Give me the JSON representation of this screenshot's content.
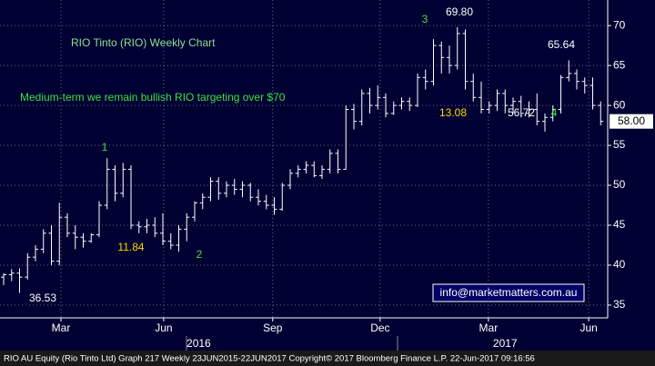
{
  "chart_data": {
    "type": "ohlc",
    "color": "#ffffff",
    "open": [
      38.5,
      38.8,
      39,
      38.5,
      41,
      42,
      44,
      40.5,
      46,
      44,
      43.5,
      43,
      43.8,
      47.5,
      52,
      49,
      52,
      45,
      44.8,
      45,
      44,
      43,
      42.5,
      44.5,
      46,
      47.8,
      48.5,
      50.5,
      49,
      50,
      49.5,
      50,
      48.5,
      48,
      47.5,
      47,
      50,
      51.5,
      52,
      52.5,
      51.2,
      52,
      54,
      52,
      59.5,
      58,
      61.5,
      60,
      61,
      59,
      60,
      60.5,
      60,
      63.5,
      63,
      67.5,
      66,
      65,
      69,
      63,
      61,
      59.5,
      60,
      61.5,
      60,
      60.5,
      59,
      59.5,
      58,
      58.5,
      59.5,
      63.5,
      64,
      63,
      62.5,
      60
    ],
    "high": [
      39,
      39.5,
      39.6,
      41.5,
      42.5,
      44.5,
      45,
      47.8,
      46.5,
      45,
      44,
      44,
      48,
      53.4,
      52.5,
      52.8,
      52.5,
      45.5,
      45.8,
      46,
      46.5,
      44,
      45,
      46.5,
      48,
      49,
      51,
      51,
      50.5,
      50.8,
      50.5,
      50.3,
      49.5,
      48.8,
      48.5,
      50.3,
      52,
      52.5,
      53,
      53,
      52.5,
      54.5,
      54.5,
      60,
      60.2,
      62,
      62.2,
      62.5,
      61.5,
      60.5,
      61,
      61,
      64,
      64.5,
      68.3,
      68,
      67.5,
      69.8,
      69.5,
      64,
      63,
      60.5,
      62,
      62,
      61,
      61.2,
      60.5,
      61.5,
      59,
      60,
      63.8,
      65.64,
      64.5,
      63.5,
      63.5,
      60.5
    ],
    "low": [
      37.5,
      38,
      36.53,
      38.2,
      40.5,
      41.5,
      40,
      40,
      43.5,
      42,
      42.2,
      42.8,
      43.5,
      47,
      48,
      48.5,
      44.5,
      44,
      44,
      43.5,
      42.5,
      42,
      41.7,
      43,
      45.5,
      47,
      48,
      48.2,
      48.5,
      48.8,
      48.5,
      48,
      47.5,
      47,
      46.3,
      46.8,
      49.5,
      51,
      51.5,
      51,
      50.8,
      51.5,
      51.5,
      52,
      57,
      57.5,
      59,
      59.5,
      58.5,
      58.8,
      59.5,
      59.3,
      59.8,
      62,
      62.5,
      64,
      64,
      64.5,
      62,
      60.5,
      59,
      59,
      59.3,
      59,
      59,
      58.5,
      58.5,
      57.5,
      56.72,
      58,
      59,
      63,
      62,
      61.5,
      59.5,
      57.5
    ],
    "close": [
      38.8,
      39,
      38.5,
      41,
      42,
      44,
      40.5,
      46,
      44,
      43.5,
      43,
      43.8,
      47.5,
      52,
      49,
      52,
      45,
      44.8,
      45,
      44,
      43,
      42.5,
      44.5,
      46,
      47.8,
      48.5,
      50.5,
      49,
      50,
      49.5,
      50,
      48.5,
      48,
      47.5,
      47,
      50,
      51.5,
      52,
      52.5,
      51.2,
      52,
      54,
      52,
      59.5,
      58,
      61.5,
      60,
      61,
      59,
      60,
      60.5,
      60,
      63.5,
      63,
      67.5,
      66,
      65,
      69,
      63,
      61,
      59.5,
      60,
      61.5,
      60,
      60.5,
      59,
      59.5,
      58,
      58.5,
      59.5,
      63.5,
      64,
      63,
      62.5,
      60,
      58
    ],
    "ylim": [
      33.4,
      73.2
    ],
    "yticks": [
      35,
      40,
      45,
      50,
      55,
      60,
      65,
      70
    ],
    "xticks": [
      {
        "value": 7.2,
        "label": "Mar"
      },
      {
        "value": 20.1,
        "label": "Jun"
      },
      {
        "value": 33.8,
        "label": "Sep"
      },
      {
        "value": 47.3,
        "label": "Dec"
      },
      {
        "value": 60.9,
        "label": "Mar"
      },
      {
        "value": 73.5,
        "label": "Jun"
      }
    ],
    "year_ticks": [
      {
        "value": 24.5,
        "label": "2016"
      },
      {
        "value": 63,
        "label": "2017"
      }
    ],
    "grid": true,
    "last_price": {
      "value": 58,
      "label": "58.00"
    },
    "annotations": [
      {
        "text": "RIO Tinto (RIO) Weekly Chart",
        "color": "#8fe08f"
      },
      {
        "text": "Medium-term we remain bullish RIO targeting over $70",
        "color": "#3fe03f"
      },
      {
        "text": "69.80",
        "color": "#ffffff"
      },
      {
        "text": "65.64",
        "color": "#ffffff"
      },
      {
        "text": "56.72",
        "color": "#ffffff"
      },
      {
        "text": "36.53",
        "color": "#ffffff"
      },
      {
        "text": "13.08",
        "color": "#ffd700"
      },
      {
        "text": "11.84",
        "color": "#ffd700"
      },
      {
        "text": "3",
        "color": "#3fe03f"
      },
      {
        "text": "1",
        "color": "#3fe03f"
      },
      {
        "text": "2",
        "color": "#3fe03f"
      },
      {
        "text": "4",
        "color": "#3fe03f"
      }
    ],
    "watermark": "info@marketmatters.com.au",
    "footer": "RIO AU Equity (Rio Tinto Ltd) Graph 217  Weekly 23JUN2015-22JUN2017  Copyright© 2017 Bloomberg Finance L.P.     22-Jun-2017 09:16:56"
  }
}
